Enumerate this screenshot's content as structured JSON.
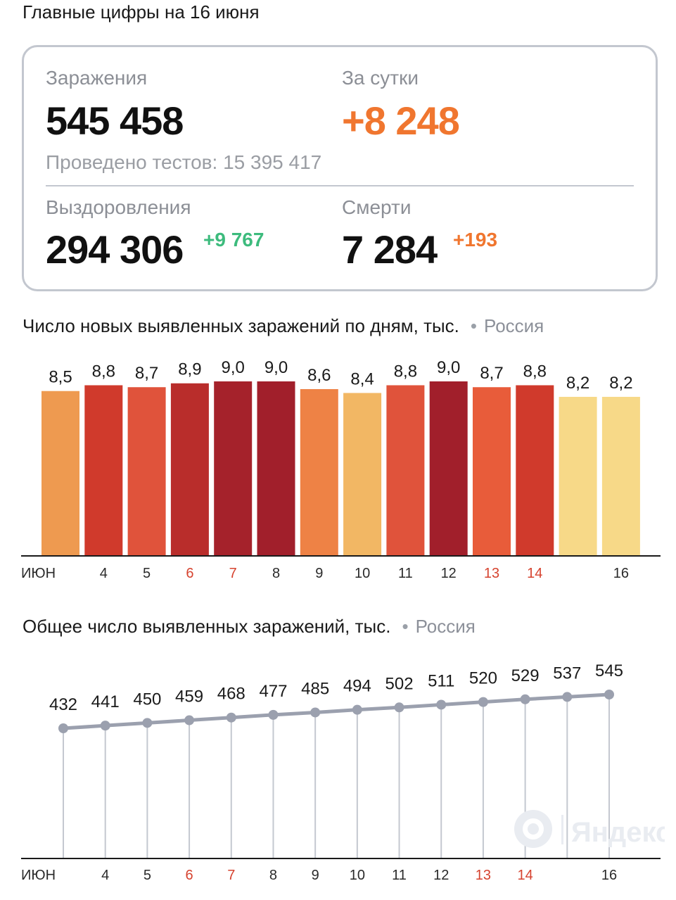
{
  "page_title": "Главные цифры на 16 июня",
  "summary": {
    "infections_label": "Заражения",
    "infections_value": "545 458",
    "day_label": "За сутки",
    "day_value": "+8 248",
    "tests_text": "Проведено тестов: 15 395 417",
    "recoveries_label": "Выздоровления",
    "recoveries_value": "294 306",
    "recoveries_delta": "+9 767",
    "deaths_label": "Смерти",
    "deaths_value": "7 284",
    "deaths_delta": "+193"
  },
  "colors": {
    "orange": "#f0762f",
    "green": "#3dbb7d",
    "weekend_tick": "#d6432f",
    "line": "#9ba0ae"
  },
  "watermark_text": "Яндекс",
  "chart_data": [
    {
      "type": "bar",
      "title": "Число новых выявленных заражений по дням, тыс.",
      "region": "Россия",
      "categories": [
        "ИЮН",
        "4",
        "5",
        "6",
        "7",
        "8",
        "9",
        "10",
        "11",
        "12",
        "13",
        "14",
        "",
        "16"
      ],
      "weekend": [
        false,
        false,
        false,
        true,
        true,
        false,
        false,
        false,
        false,
        false,
        true,
        true,
        false,
        false
      ],
      "values": [
        8.5,
        8.8,
        8.7,
        8.9,
        9.0,
        9.0,
        8.6,
        8.4,
        8.8,
        9.0,
        8.7,
        8.8,
        8.2,
        8.2
      ],
      "value_labels": [
        "8,5",
        "8,8",
        "8,7",
        "8,9",
        "9,0",
        "9,0",
        "8,6",
        "8,4",
        "8,8",
        "9,0",
        "8,7",
        "8,8",
        "8,2",
        "8,2"
      ],
      "bar_colors": [
        "#ee9a50",
        "#d03a2c",
        "#e0533b",
        "#b92d2b",
        "#a5222b",
        "#a11f2b",
        "#ee8245",
        "#f2b764",
        "#e0533b",
        "#a11f2b",
        "#e85c3a",
        "#d03a2c",
        "#f7d988",
        "#f7d988"
      ],
      "ylim": [
        0,
        9.0
      ]
    },
    {
      "type": "line",
      "title": "Общее число выявленных заражений, тыс.",
      "region": "Россия",
      "categories": [
        "ИЮН",
        "4",
        "5",
        "6",
        "7",
        "8",
        "9",
        "10",
        "11",
        "12",
        "13",
        "14",
        "",
        "16"
      ],
      "weekend": [
        false,
        false,
        false,
        true,
        true,
        false,
        false,
        false,
        false,
        false,
        true,
        true,
        false,
        false
      ],
      "values": [
        432,
        441,
        450,
        459,
        468,
        477,
        485,
        494,
        502,
        511,
        520,
        529,
        537,
        545
      ],
      "value_labels": [
        "432",
        "441",
        "450",
        "459",
        "468",
        "477",
        "485",
        "494",
        "502",
        "511",
        "520",
        "529",
        "537",
        "545"
      ]
    }
  ]
}
